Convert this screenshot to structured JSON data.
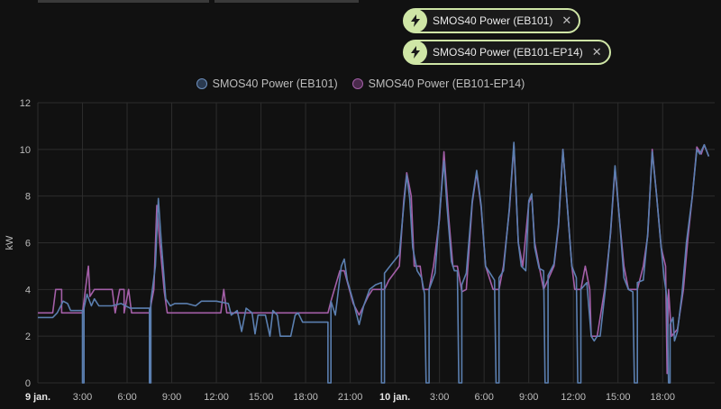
{
  "filters": [
    {
      "label": "SMOS40 Power (EB101)",
      "icon": "lightning-bolt-icon",
      "close": "✕"
    },
    {
      "label": "SMOS40 Power (EB101-EP14)",
      "icon": "lightning-bolt-icon",
      "close": "✕"
    }
  ],
  "colors": {
    "accent_chip": "#cfe6a6",
    "series_1": "#5b7fb0",
    "series_2": "#a45fa8",
    "grid": "#2d2d2d"
  },
  "chart_data": {
    "type": "line",
    "ylabel": "kW",
    "xlabel": "",
    "ylim": [
      0,
      12
    ],
    "yticks": [
      0,
      2,
      4,
      6,
      8,
      10,
      12
    ],
    "xlim_hours": [
      0,
      45.5
    ],
    "xticks": [
      {
        "h": 0,
        "label": "9 jan.",
        "bold": true
      },
      {
        "h": 3,
        "label": "3:00"
      },
      {
        "h": 6,
        "label": "6:00"
      },
      {
        "h": 9,
        "label": "9:00"
      },
      {
        "h": 12,
        "label": "12:00"
      },
      {
        "h": 15,
        "label": "15:00"
      },
      {
        "h": 18,
        "label": "18:00"
      },
      {
        "h": 21,
        "label": "21:00"
      },
      {
        "h": 24,
        "label": "10 jan.",
        "bold": true
      },
      {
        "h": 27,
        "label": "3:00"
      },
      {
        "h": 30,
        "label": "6:00"
      },
      {
        "h": 33,
        "label": "9:00"
      },
      {
        "h": 36,
        "label": "12:00"
      },
      {
        "h": 39,
        "label": "15:00"
      },
      {
        "h": 42,
        "label": "18:00"
      }
    ],
    "grid": true,
    "legend": "top-center",
    "series": [
      {
        "name": "SMOS40 Power (EB101)",
        "points": [
          [
            0,
            2.8
          ],
          [
            1,
            2.8
          ],
          [
            1.3,
            3.0
          ],
          [
            1.7,
            3.5
          ],
          [
            2.0,
            3.4
          ],
          [
            2.2,
            3.1
          ],
          [
            3,
            3.1
          ],
          [
            3,
            0
          ],
          [
            3.1,
            0
          ],
          [
            3.1,
            3.2
          ],
          [
            3.3,
            3.8
          ],
          [
            3.6,
            3.3
          ],
          [
            3.8,
            3.6
          ],
          [
            4.1,
            3.3
          ],
          [
            5,
            3.3
          ],
          [
            5.6,
            3.4
          ],
          [
            6.2,
            3.2
          ],
          [
            7.5,
            3.2
          ],
          [
            7.5,
            0
          ],
          [
            7.6,
            0
          ],
          [
            7.6,
            3.5
          ],
          [
            7.9,
            5.0
          ],
          [
            8.1,
            7.9
          ],
          [
            8.3,
            6.0
          ],
          [
            8.6,
            3.6
          ],
          [
            8.9,
            3.3
          ],
          [
            9.2,
            3.4
          ],
          [
            10,
            3.4
          ],
          [
            10.6,
            3.3
          ],
          [
            11,
            3.5
          ],
          [
            12,
            3.5
          ],
          [
            12.8,
            3.4
          ],
          [
            13,
            2.9
          ],
          [
            13.4,
            3.1
          ],
          [
            13.7,
            2.2
          ],
          [
            14,
            3.2
          ],
          [
            14.4,
            3.0
          ],
          [
            14.6,
            2.1
          ],
          [
            14.8,
            2.9
          ],
          [
            15.3,
            2.9
          ],
          [
            15.6,
            2.0
          ],
          [
            15.8,
            3.1
          ],
          [
            16.1,
            2.9
          ],
          [
            16.3,
            2.0
          ],
          [
            17,
            2.0
          ],
          [
            17.3,
            2.9
          ],
          [
            17.5,
            3.0
          ],
          [
            17.8,
            2.6
          ],
          [
            19.5,
            2.6
          ],
          [
            19.5,
            0
          ],
          [
            19.7,
            0
          ],
          [
            19.7,
            3.5
          ],
          [
            20.0,
            2.9
          ],
          [
            20.4,
            5.0
          ],
          [
            20.6,
            5.3
          ],
          [
            20.8,
            4.4
          ],
          [
            21.2,
            3.5
          ],
          [
            21.6,
            2.5
          ],
          [
            21.9,
            3.3
          ],
          [
            22.3,
            4.0
          ],
          [
            22.7,
            4.2
          ],
          [
            23.1,
            4.3
          ],
          [
            23.1,
            0
          ],
          [
            23.3,
            0
          ],
          [
            23.3,
            4.7
          ],
          [
            23.8,
            5.1
          ],
          [
            24.3,
            5.5
          ],
          [
            24.6,
            7.6
          ],
          [
            24.8,
            8.9
          ],
          [
            25.0,
            7.9
          ],
          [
            25.2,
            5.8
          ],
          [
            25.5,
            4.8
          ],
          [
            25.8,
            4.5
          ],
          [
            26.0,
            3.8
          ],
          [
            26.1,
            0
          ],
          [
            26.3,
            0
          ],
          [
            26.3,
            4.0
          ],
          [
            26.7,
            4.7
          ],
          [
            27.0,
            7.2
          ],
          [
            27.3,
            9.5
          ],
          [
            27.5,
            7.6
          ],
          [
            27.8,
            5.2
          ],
          [
            28.0,
            4.8
          ],
          [
            28.2,
            4.8
          ],
          [
            28.3,
            0
          ],
          [
            28.5,
            0
          ],
          [
            28.5,
            4.2
          ],
          [
            28.8,
            4.7
          ],
          [
            29.2,
            7.8
          ],
          [
            29.5,
            9.1
          ],
          [
            29.8,
            7.6
          ],
          [
            30.1,
            5.0
          ],
          [
            30.5,
            4.6
          ],
          [
            30.7,
            4.4
          ],
          [
            30.8,
            0
          ],
          [
            31.0,
            0
          ],
          [
            31.0,
            4.5
          ],
          [
            31.3,
            4.8
          ],
          [
            31.7,
            7.5
          ],
          [
            32.0,
            10.3
          ],
          [
            32.3,
            6.0
          ],
          [
            32.5,
            5.0
          ],
          [
            32.8,
            4.8
          ],
          [
            33.0,
            7.8
          ],
          [
            33.2,
            8.1
          ],
          [
            33.4,
            5.8
          ],
          [
            33.7,
            4.9
          ],
          [
            34.0,
            4.8
          ],
          [
            34.1,
            0
          ],
          [
            34.3,
            0
          ],
          [
            34.3,
            4.6
          ],
          [
            34.7,
            5.1
          ],
          [
            35.0,
            6.8
          ],
          [
            35.3,
            10.0
          ],
          [
            35.6,
            7.5
          ],
          [
            35.9,
            5.0
          ],
          [
            36.2,
            4.5
          ],
          [
            36.3,
            0
          ],
          [
            36.5,
            0
          ],
          [
            36.5,
            4.0
          ],
          [
            36.9,
            4.3
          ],
          [
            37.2,
            2.0
          ],
          [
            37.4,
            1.8
          ],
          [
            37.6,
            2.0
          ],
          [
            37.8,
            2.0
          ],
          [
            38.2,
            4.3
          ],
          [
            38.5,
            6.5
          ],
          [
            38.8,
            9.3
          ],
          [
            39.1,
            7.0
          ],
          [
            39.4,
            4.5
          ],
          [
            39.7,
            4.0
          ],
          [
            40.0,
            3.9
          ],
          [
            40.1,
            0
          ],
          [
            40.3,
            0
          ],
          [
            40.3,
            4.3
          ],
          [
            40.7,
            4.4
          ],
          [
            41.0,
            6.4
          ],
          [
            41.3,
            9.9
          ],
          [
            41.6,
            8.0
          ],
          [
            41.9,
            5.8
          ],
          [
            42.1,
            4.5
          ],
          [
            42.3,
            3.6
          ],
          [
            42.4,
            0
          ],
          [
            42.5,
            0
          ],
          [
            42.5,
            2.5
          ],
          [
            42.7,
            2.8
          ],
          [
            42.8,
            1.8
          ],
          [
            43.0,
            2.2
          ],
          [
            43.3,
            3.8
          ],
          [
            43.6,
            6.0
          ],
          [
            44.0,
            8.0
          ],
          [
            44.3,
            10.0
          ],
          [
            44.5,
            9.8
          ],
          [
            44.8,
            10.2
          ],
          [
            45.1,
            9.7
          ]
        ]
      },
      {
        "name": "SMOS40 Power (EB101-EP14)",
        "points": [
          [
            0,
            3.0
          ],
          [
            1.0,
            3.0
          ],
          [
            1.2,
            4.0
          ],
          [
            1.6,
            4.0
          ],
          [
            1.6,
            3.0
          ],
          [
            3.0,
            3.0
          ],
          [
            3.2,
            4.0
          ],
          [
            3.4,
            5.0
          ],
          [
            3.5,
            3.7
          ],
          [
            3.8,
            4.0
          ],
          [
            4.1,
            4.0
          ],
          [
            5.0,
            4.0
          ],
          [
            5.2,
            3.0
          ],
          [
            5.5,
            4.0
          ],
          [
            5.8,
            4.0
          ],
          [
            5.8,
            3.0
          ],
          [
            6.1,
            4.0
          ],
          [
            6.3,
            3.0
          ],
          [
            7.5,
            3.0
          ],
          [
            7.8,
            4.0
          ],
          [
            8.0,
            7.6
          ],
          [
            8.2,
            6.0
          ],
          [
            8.5,
            3.9
          ],
          [
            8.7,
            3.0
          ],
          [
            12,
            3.0
          ],
          [
            12.3,
            3.0
          ],
          [
            12.5,
            4.0
          ],
          [
            12.7,
            3.0
          ],
          [
            13.0,
            3.0
          ],
          [
            14.0,
            3.0
          ],
          [
            17.5,
            3.0
          ],
          [
            19.5,
            3.0
          ],
          [
            19.7,
            3.5
          ],
          [
            20.3,
            4.8
          ],
          [
            20.6,
            4.8
          ],
          [
            21.2,
            3.4
          ],
          [
            21.6,
            2.9
          ],
          [
            22.2,
            3.7
          ],
          [
            22.5,
            4.0
          ],
          [
            23.3,
            4.0
          ],
          [
            23.6,
            4.4
          ],
          [
            24.3,
            5.0
          ],
          [
            24.6,
            7.8
          ],
          [
            24.8,
            9.0
          ],
          [
            25.1,
            8.0
          ],
          [
            25.3,
            5.0
          ],
          [
            25.7,
            5.0
          ],
          [
            25.9,
            4.0
          ],
          [
            26.3,
            4.0
          ],
          [
            26.6,
            5.0
          ],
          [
            27.0,
            7.0
          ],
          [
            27.3,
            9.9
          ],
          [
            27.6,
            7.2
          ],
          [
            27.9,
            5.0
          ],
          [
            28.2,
            5.0
          ],
          [
            28.5,
            3.9
          ],
          [
            28.8,
            4.0
          ],
          [
            29.2,
            7.7
          ],
          [
            29.5,
            9.0
          ],
          [
            29.8,
            7.5
          ],
          [
            30.1,
            5.0
          ],
          [
            30.6,
            4.0
          ],
          [
            31.0,
            4.0
          ],
          [
            31.3,
            5.0
          ],
          [
            31.7,
            7.4
          ],
          [
            32.0,
            10.2
          ],
          [
            32.3,
            6.0
          ],
          [
            32.6,
            5.0
          ],
          [
            33.0,
            7.7
          ],
          [
            33.2,
            8.0
          ],
          [
            33.4,
            6.0
          ],
          [
            33.7,
            5.0
          ],
          [
            34.0,
            4.0
          ],
          [
            34.7,
            5.0
          ],
          [
            35.0,
            6.7
          ],
          [
            35.3,
            10.0
          ],
          [
            35.6,
            7.5
          ],
          [
            35.9,
            5.0
          ],
          [
            36.1,
            4.0
          ],
          [
            36.5,
            4.0
          ],
          [
            36.8,
            5.0
          ],
          [
            37.1,
            4.0
          ],
          [
            37.2,
            2.0
          ],
          [
            37.6,
            2.0
          ],
          [
            38.1,
            4.0
          ],
          [
            38.5,
            6.4
          ],
          [
            38.8,
            9.2
          ],
          [
            39.1,
            7.0
          ],
          [
            39.4,
            5.0
          ],
          [
            39.7,
            4.0
          ],
          [
            40.3,
            4.0
          ],
          [
            40.7,
            5.0
          ],
          [
            41.0,
            6.3
          ],
          [
            41.3,
            10.0
          ],
          [
            41.6,
            8.0
          ],
          [
            41.9,
            5.8
          ],
          [
            42.2,
            5.0
          ],
          [
            42.3,
            0.4
          ],
          [
            42.4,
            4.0
          ],
          [
            42.6,
            2.0
          ],
          [
            43.0,
            2.3
          ],
          [
            43.4,
            4.0
          ],
          [
            43.7,
            6.2
          ],
          [
            44.0,
            8.0
          ],
          [
            44.3,
            10.1
          ],
          [
            44.6,
            9.8
          ],
          [
            44.8,
            10.2
          ],
          [
            45.1,
            9.7
          ]
        ]
      }
    ]
  }
}
